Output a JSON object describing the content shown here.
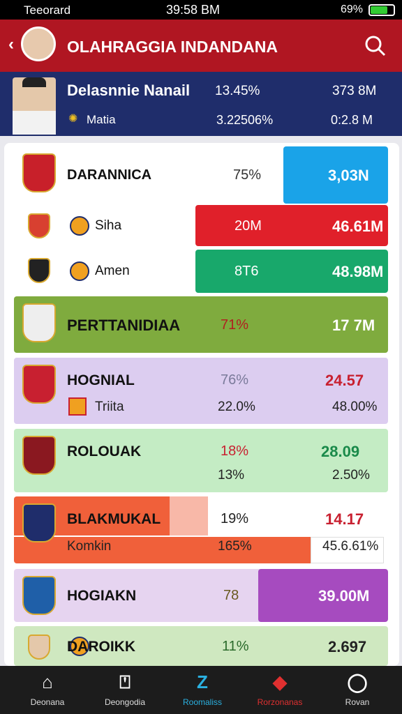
{
  "status_bar": {
    "carrier": "Teeorard",
    "time": "39:58 BM",
    "battery": "69%"
  },
  "header": {
    "title": "OLAHRAGGIA INDANDANA"
  },
  "profile": {
    "name": "Delasnnie Nanail",
    "subtitle": "Matia",
    "stats": [
      "13.45%",
      "373 8M",
      "3.22506%",
      "0:2.8 M"
    ]
  },
  "rows": [
    {
      "name": "DARANNICA",
      "percent": "75%",
      "value": "3,03N"
    },
    {
      "name": "Siha",
      "percent": "20M",
      "value": "46.61M"
    },
    {
      "name": "Amen",
      "percent": "8T6",
      "value": "48.98M"
    },
    {
      "name": "PERTTANIDIAA",
      "percent": "71%",
      "value": "17 7M"
    },
    {
      "name": "HOGNIAL",
      "percent": "76%",
      "value": "24.57",
      "sub_name": "Triita",
      "sub_percent": "22.0%",
      "sub_value": "48.00%"
    },
    {
      "name": "ROLOUAK",
      "percent": "18%",
      "value": "28.09",
      "sub_percent": "13%",
      "sub_value": "2.50%"
    },
    {
      "name": "BLAKMUKAL",
      "percent": "19%",
      "value": "14.17",
      "sub_name": "Komkin",
      "sub_percent": "165%",
      "sub_value": "45.6.61%"
    },
    {
      "name": "HOGIAKN",
      "percent": "78",
      "value": "39.00M"
    },
    {
      "name": "DAROIKK",
      "percent": "11%",
      "value": "2.697"
    }
  ],
  "nav": [
    "Deonana",
    "Deongodia",
    "Roomaliss",
    "Rorzonanas",
    "Rovan"
  ]
}
